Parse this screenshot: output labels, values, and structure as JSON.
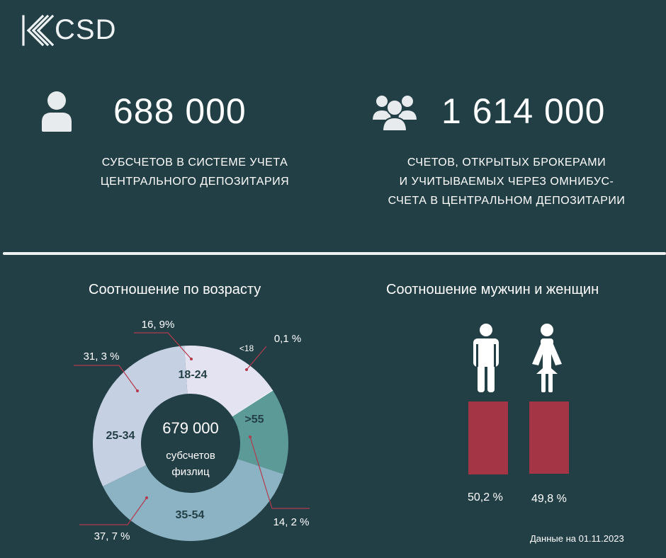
{
  "brand": {
    "name": "CSD"
  },
  "stats": [
    {
      "icon": "person-icon",
      "value": "688 000",
      "caption_lines": [
        "СУБСЧЕТОВ В СИСТЕМЕ УЧЕТА",
        "ЦЕНТРАЛЬНОГО ДЕПОЗИТАРИЯ"
      ]
    },
    {
      "icon": "people-group-icon",
      "value": "1 614 000",
      "caption_lines": [
        "СЧЕТОВ, ОТКРЫТЫХ БРОКЕРАМИ",
        "И УЧИТЫВАЕМЫХ ЧЕРЕЗ ОМНИБУС-",
        "СЧЕТА В ЦЕНТРАЛЬНОМ ДЕПОЗИТАРИИ"
      ]
    }
  ],
  "age_title": "Соотношение по возрасту",
  "gender_title": "Соотношение мужчин и женщин",
  "donut_center": {
    "value": "679 000",
    "line1": "субсчетов",
    "line2": "физлиц"
  },
  "footnote": "Данные на 01.11.2023",
  "chart_data": [
    {
      "type": "pie",
      "title": "Соотношение по возрасту",
      "slices": [
        {
          "label": "<18",
          "value": 0.1,
          "value_label": "0,1 %",
          "color": "#ffffff"
        },
        {
          "label": ">55",
          "value": 14.2,
          "value_label": "14, 2 %",
          "color": "#5c9a98"
        },
        {
          "label": "35-54",
          "value": 37.7,
          "value_label": "37, 7 %",
          "color": "#8cb3c3"
        },
        {
          "label": "25-34",
          "value": 31.3,
          "value_label": "31, 3 %",
          "color": "#c5d0e3"
        },
        {
          "label": "18-24",
          "value": 16.9,
          "value_label": "16, 9%",
          "color": "#e4e3f2"
        }
      ],
      "leader_color": "#b33a4c"
    },
    {
      "type": "bar",
      "title": "Соотношение мужчин и женщин",
      "categories": [
        "male-icon",
        "female-icon"
      ],
      "values": [
        50.2,
        49.8
      ],
      "value_labels": [
        "50,2 %",
        "49,8 %"
      ],
      "color": "#a43544"
    }
  ]
}
